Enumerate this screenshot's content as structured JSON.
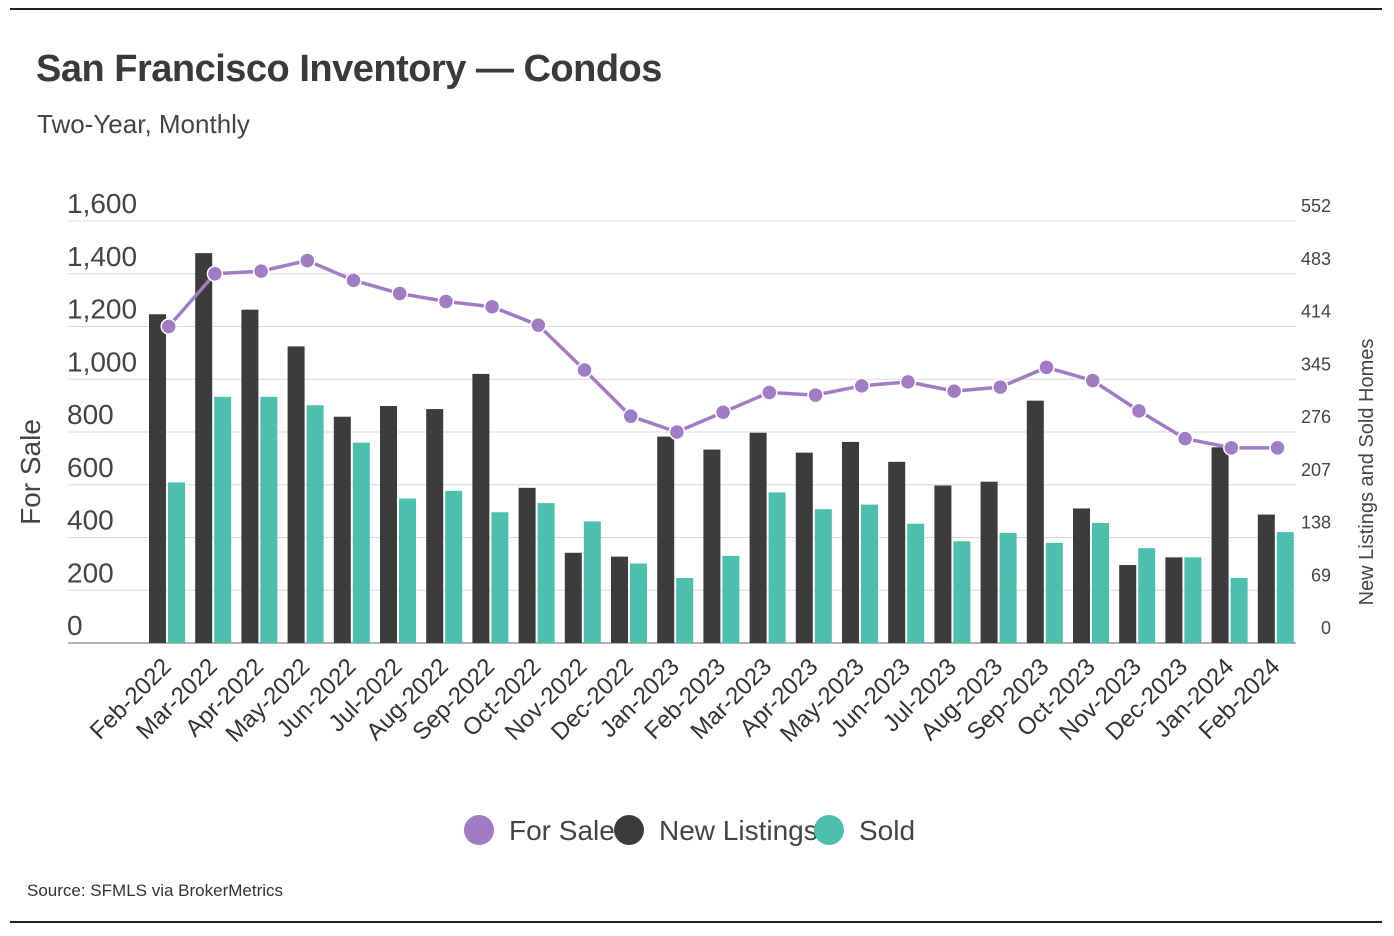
{
  "chart_data": {
    "type": "bar",
    "title": "San Francisco Inventory — Condos",
    "subtitle": "Two-Year, Monthly",
    "categories": [
      "Feb-2022",
      "Mar-2022",
      "Apr-2022",
      "May-2022",
      "Jun-2022",
      "Jul-2022",
      "Aug-2022",
      "Sep-2022",
      "Oct-2022",
      "Nov-2022",
      "Dec-2022",
      "Jan-2023",
      "Feb-2023",
      "Mar-2023",
      "Apr-2023",
      "May-2023",
      "Jun-2023",
      "Jul-2023",
      "Aug-2023",
      "Sep-2023",
      "Oct-2023",
      "Nov-2023",
      "Dec-2023",
      "Jan-2024",
      "Feb-2024"
    ],
    "series": [
      {
        "name": "For Sale",
        "type": "line",
        "axis": "left",
        "color": "#a07cc5",
        "values": [
          1200,
          1400,
          1410,
          1450,
          1375,
          1325,
          1295,
          1275,
          1205,
          1035,
          860,
          800,
          875,
          950,
          940,
          975,
          990,
          955,
          970,
          1045,
          995,
          880,
          775,
          740,
          740
        ]
      },
      {
        "name": "New Listings",
        "type": "bar",
        "axis": "right",
        "color": "#3c3c3c",
        "values": [
          430,
          510,
          436,
          388,
          296,
          310,
          306,
          352,
          203,
          118,
          113,
          270,
          253,
          275,
          249,
          263,
          237,
          206,
          211,
          317,
          176,
          102,
          112,
          256,
          168
        ]
      },
      {
        "name": "Sold",
        "type": "bar",
        "axis": "right",
        "color": "#4cbfad",
        "values": [
          210,
          322,
          322,
          311,
          262,
          189,
          199,
          171,
          183,
          159,
          104,
          85,
          114,
          197,
          175,
          181,
          156,
          133,
          144,
          131,
          157,
          124,
          112,
          85,
          145
        ]
      }
    ],
    "ylabel": "For Sale",
    "ylabel_right": "New Listings and Sold Homes",
    "ylim": [
      0,
      1600
    ],
    "yticks": [
      "0",
      "200",
      "400",
      "600",
      "800",
      "1,000",
      "1,200",
      "1,400",
      "1,600"
    ],
    "ylim_right": [
      0,
      552
    ],
    "yticks_right": [
      "0",
      "69",
      "138",
      "207",
      "276",
      "345",
      "414",
      "483",
      "552"
    ],
    "grid": true,
    "legend_position": "bottom-center"
  },
  "source": "Source:  SFMLS via BrokerMetrics"
}
